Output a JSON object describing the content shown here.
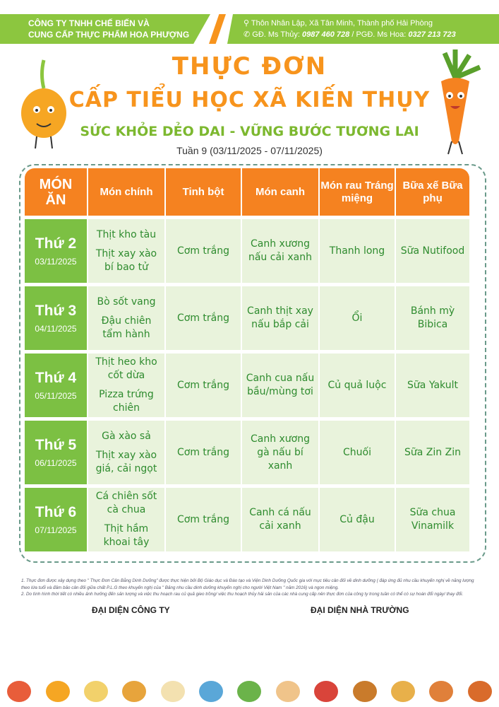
{
  "header": {
    "company_line1": "CÔNG TY TNHH CHẾ BIẾN VÀ",
    "company_line2": "CUNG CẤP THỰC PHẨM HOA PHƯỢNG",
    "address": "Thôn Nhân Lập, Xã Tân Minh, Thành phố Hải Phòng",
    "contact_prefix1": "GĐ. Ms Thủy: ",
    "phone1": "0987 460 728",
    "contact_prefix2": " / PGĐ. Ms Hoa: ",
    "phone2": "0327 213 723",
    "accent_green": "#8cc63f",
    "accent_orange": "#f7941d"
  },
  "title": {
    "line1": "THỰC ĐƠN",
    "line2": "CẤP TIỂU HỌC XÃ KIẾN THỤY",
    "slogan": "SỨC KHỎE DẺO DAI - VỮNG BƯỚC TƯƠNG LAI",
    "week": "Tuần 9 (03/11/2025 - 07/11/2025)"
  },
  "table": {
    "headers": [
      "MÓN ĂN",
      "Món chính",
      "Tinh bột",
      "Món canh",
      "Món rau Tráng miệng",
      "Bữa xế Bữa phụ"
    ],
    "rows": [
      {
        "day": "Thứ 2",
        "date": "03/11/2025",
        "main": [
          "Thịt kho tàu",
          "Thịt xay xào bí bao tử"
        ],
        "starch": "Cơm trắng",
        "soup": "Canh xương nấu cải xanh",
        "veg": "Thanh long",
        "snack": "Sữa Nutifood"
      },
      {
        "day": "Thứ 3",
        "date": "04/11/2025",
        "main": [
          "Bò sốt vang",
          "Đậu chiên tẩm hành"
        ],
        "starch": "Cơm trắng",
        "soup": "Canh thịt xay nấu bắp cải",
        "veg": "Ổi",
        "snack": "Bánh mỳ Bibica"
      },
      {
        "day": "Thứ 4",
        "date": "05/11/2025",
        "main": [
          "Thịt heo kho cốt dừa",
          "Pizza trứng chiên"
        ],
        "starch": "Cơm trắng",
        "soup": "Canh cua nấu bầu/mùng tơi",
        "veg": "Củ quả luộc",
        "snack": "Sữa Yakult"
      },
      {
        "day": "Thứ 5",
        "date": "06/11/2025",
        "main": [
          "Gà xào sả",
          "Thịt xay xào giá, cải ngọt"
        ],
        "starch": "Cơm trắng",
        "soup": "Canh xương gà nấu bí xanh",
        "veg": "Chuối",
        "snack": "Sữa Zin Zin"
      },
      {
        "day": "Thứ 6",
        "date": "07/11/2025",
        "main": [
          "Cá chiên sốt cà chua",
          "Thịt hầm khoai tây"
        ],
        "starch": "Cơm trắng",
        "soup": "Canh cá nấu cải xanh",
        "veg": "Củ đậu",
        "snack": "Sữa chua Vinamilk"
      }
    ]
  },
  "notes": [
    "1. Thực đơn được xây dựng theo \" Thực Đơn Cân Bằng Dinh Dưỡng\" được thực hiện bởi Bộ Giáo dục và Đào tạo và Viện Dinh Dưỡng Quốc gia với mục tiêu cân đối về dinh dưỡng ( đáp ứng đủ nhu cầu khuyến nghị về năng lượng theo lứa tuổi và đảm bảo cân đối giữa chất P.L.G theo khuyến nghị của \" Bảng nhu cầu dinh dưỡng khuyến nghị cho người Việt Nam \" năm 2016) và ngon miệng.",
    "2. Do tình hình thời tiết có nhiều ảnh hưởng đến sản lượng và việc thu hoạch rau củ quả gieo trồng/ việc thu hoạch thủy hải sản của các nhà cung cấp nên thực đơn của công ty trong tuần có thể có sự hoán đổi ngày/ thay đổi."
  ],
  "signatures": {
    "company": "ĐẠI DIỆN CÔNG TY",
    "school": "ĐẠI DIỆN NHÀ TRƯỜNG"
  }
}
